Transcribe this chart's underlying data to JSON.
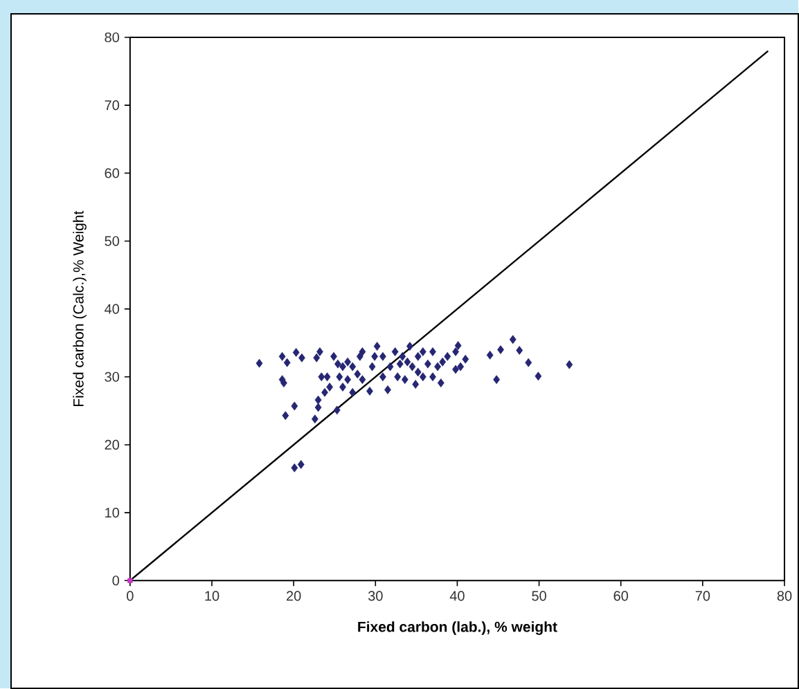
{
  "chart_data": {
    "type": "scatter",
    "xlabel": "Fixed carbon (lab.), % weight",
    "ylabel": "Fixed carbon (Calc.),% Weight",
    "xlim": [
      0,
      80
    ],
    "ylim": [
      0,
      80
    ],
    "xticks": [
      0,
      10,
      20,
      30,
      40,
      50,
      60,
      70,
      80
    ],
    "yticks": [
      0,
      10,
      20,
      30,
      40,
      50,
      60,
      70,
      80
    ],
    "marker": "diamond",
    "series": [
      {
        "color": "#262673",
        "x": [
          15.8,
          18.6,
          19.2,
          18.6,
          18.8,
          19.0,
          20.1,
          20.3,
          21.0,
          20.1,
          20.9,
          22.8,
          23.2,
          23.4,
          23.0,
          23.0,
          22.6,
          23.8,
          25.3,
          24.9,
          25.4,
          25.6,
          26.0,
          26.6,
          27.2,
          27.8,
          28.1,
          29.3,
          29.6,
          30.2,
          30.9,
          31.5,
          31.8,
          32.4,
          32.7,
          33.3,
          33.6,
          34.2,
          34.5,
          34.9,
          35.2,
          35.8,
          36.4,
          37.0,
          37.6,
          38.0,
          38.8,
          39.8,
          40.1,
          39.8,
          41.0,
          40.4,
          44.0,
          45.3,
          44.8,
          46.8,
          47.6,
          48.7,
          49.9,
          53.7,
          27.2,
          28.4,
          24.1,
          26.6,
          30.9,
          33.0,
          35.8,
          37.0,
          38.2,
          29.9,
          33.9,
          35.2,
          28.4,
          26.0,
          24.4
        ],
        "values": [
          32.0,
          33.0,
          32.1,
          29.6,
          29.1,
          24.3,
          25.7,
          33.6,
          32.8,
          16.6,
          17.1,
          32.8,
          33.7,
          30.0,
          26.6,
          25.5,
          23.8,
          27.7,
          25.1,
          33.0,
          31.9,
          30.0,
          28.5,
          32.2,
          27.7,
          30.4,
          33.0,
          27.9,
          31.5,
          34.5,
          33.0,
          28.1,
          31.5,
          33.7,
          30.0,
          33.0,
          29.6,
          34.5,
          31.5,
          28.9,
          33.0,
          30.0,
          31.9,
          33.7,
          31.5,
          29.1,
          33.0,
          33.7,
          34.6,
          31.1,
          32.6,
          31.5,
          33.2,
          34.0,
          29.6,
          35.5,
          33.9,
          32.1,
          30.1,
          31.8,
          31.5,
          29.6,
          30.0,
          29.6,
          30.0,
          31.9,
          33.7,
          30.0,
          32.2,
          33.0,
          32.2,
          30.7,
          33.7,
          31.5,
          28.5
        ]
      },
      {
        "color": "#cc33cc",
        "marker": "square",
        "x": [
          0
        ],
        "values": [
          0
        ]
      },
      {
        "type": "line",
        "color": "#000000",
        "marker": "none",
        "x": [
          0,
          78
        ],
        "values": [
          0,
          78
        ]
      }
    ]
  }
}
